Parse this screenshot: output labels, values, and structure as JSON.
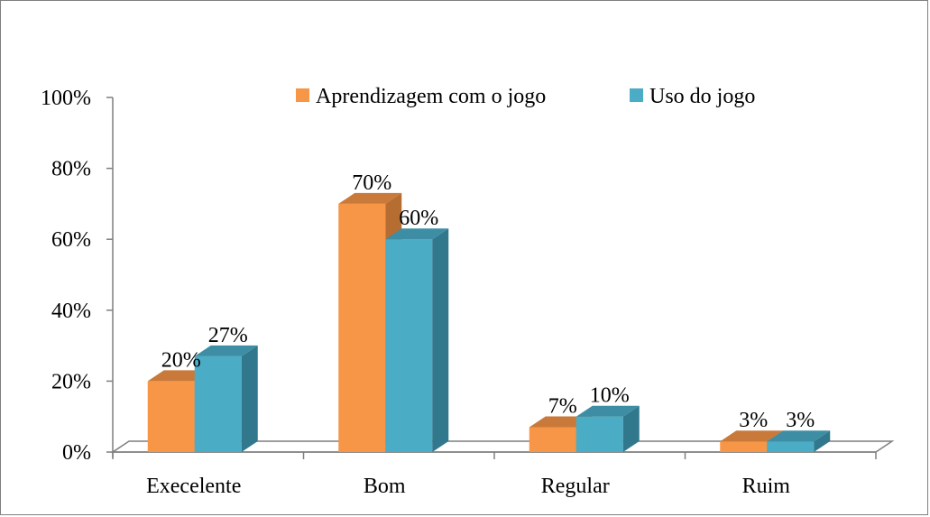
{
  "chart_data": {
    "type": "bar",
    "style": "3d-clustered-column",
    "categories": [
      "Execelente",
      "Bom",
      "Regular",
      "Ruim"
    ],
    "series": [
      {
        "name": "Aprendizagem com o jogo",
        "values": [
          20,
          70,
          7,
          3
        ],
        "labels": [
          "20%",
          "70%",
          "7%",
          "3%"
        ],
        "color": "#F79646",
        "color_side": "#B66D31",
        "color_top": "#C97A3A"
      },
      {
        "name": "Uso do jogo",
        "values": [
          27,
          60,
          10,
          3
        ],
        "labels": [
          "27%",
          "60%",
          "10%",
          "3%"
        ],
        "color": "#4BACC6",
        "color_side": "#31788D",
        "color_top": "#3D8EA4"
      }
    ],
    "ylim": [
      0,
      100
    ],
    "y_ticks": [
      0,
      20,
      40,
      60,
      80,
      100
    ],
    "y_tick_labels": [
      "0%",
      "20%",
      "40%",
      "60%",
      "80%",
      "100%"
    ],
    "legend_position": "top-right",
    "grid": false,
    "axis_color": "#7f7f7f"
  }
}
